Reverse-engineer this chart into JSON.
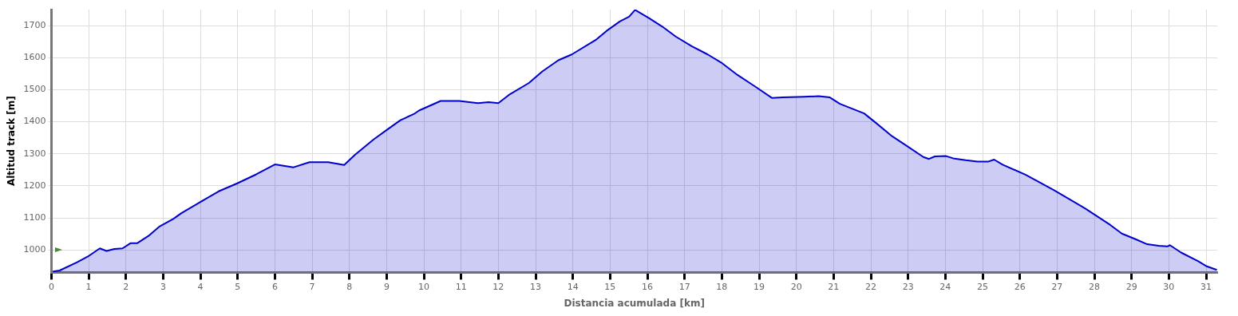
{
  "chart_data": {
    "type": "area",
    "xlabel": "Distancia acumulada [km]",
    "ylabel": "Altitud track [m]",
    "x": [
      0.04,
      0.22,
      0.69,
      1.01,
      1.3,
      1.48,
      1.69,
      1.91,
      2.12,
      2.3,
      2.63,
      2.91,
      3.27,
      3.49,
      3.99,
      4.49,
      4.99,
      5.5,
      6.0,
      6.5,
      6.93,
      7.43,
      7.86,
      8.15,
      8.65,
      9.01,
      9.37,
      9.73,
      9.87,
      10.45,
      10.95,
      11.45,
      11.74,
      12.0,
      12.31,
      12.82,
      13.18,
      13.61,
      13.97,
      14.61,
      14.9,
      15.26,
      15.51,
      15.67,
      16.05,
      16.4,
      16.76,
      17.19,
      17.62,
      17.98,
      18.42,
      18.92,
      19.35,
      19.63,
      20.21,
      20.6,
      20.9,
      21.17,
      21.82,
      22.12,
      22.57,
      22.95,
      23.41,
      23.56,
      23.72,
      24.02,
      24.21,
      24.55,
      24.86,
      25.16,
      25.31,
      25.54,
      26.15,
      26.91,
      27.75,
      28.43,
      28.74,
      29.12,
      29.42,
      29.73,
      29.96,
      30.03,
      30.33,
      30.79,
      31.02,
      31.29
    ],
    "series": [
      {
        "color": "#0000cc",
        "values": [
          933,
          936,
          962,
          982,
          1005,
          997,
          1003,
          1005,
          1021,
          1021,
          1046,
          1074,
          1097,
          1115,
          1149,
          1183,
          1208,
          1236,
          1267,
          1258,
          1274,
          1274,
          1265,
          1297,
          1345,
          1375,
          1405,
          1424,
          1435,
          1465,
          1465,
          1458,
          1461,
          1458,
          1486,
          1521,
          1557,
          1592,
          1610,
          1655,
          1683,
          1713,
          1728,
          1749,
          1723,
          1697,
          1666,
          1636,
          1610,
          1585,
          1546,
          1508,
          1474,
          1476,
          1478,
          1480,
          1476,
          1456,
          1426,
          1398,
          1355,
          1326,
          1290,
          1284,
          1292,
          1293,
          1286,
          1280,
          1276,
          1276,
          1282,
          1266,
          1235,
          1187,
          1130,
          1078,
          1051,
          1033,
          1018,
          1013,
          1011,
          1015,
          992,
          965,
          949,
          938
        ]
      }
    ],
    "xlim": [
      0,
      31.3
    ],
    "ylim": [
      930,
      1750
    ],
    "xticks": [
      0,
      1,
      2,
      3,
      4,
      5,
      6,
      7,
      8,
      9,
      10,
      11,
      12,
      13,
      14,
      15,
      16,
      17,
      18,
      19,
      20,
      21,
      22,
      23,
      24,
      25,
      26,
      27,
      28,
      29,
      30,
      31
    ],
    "yticks": [
      1000,
      1100,
      1200,
      1300,
      1400,
      1500,
      1600,
      1700
    ],
    "grid": true,
    "marker": "none"
  }
}
